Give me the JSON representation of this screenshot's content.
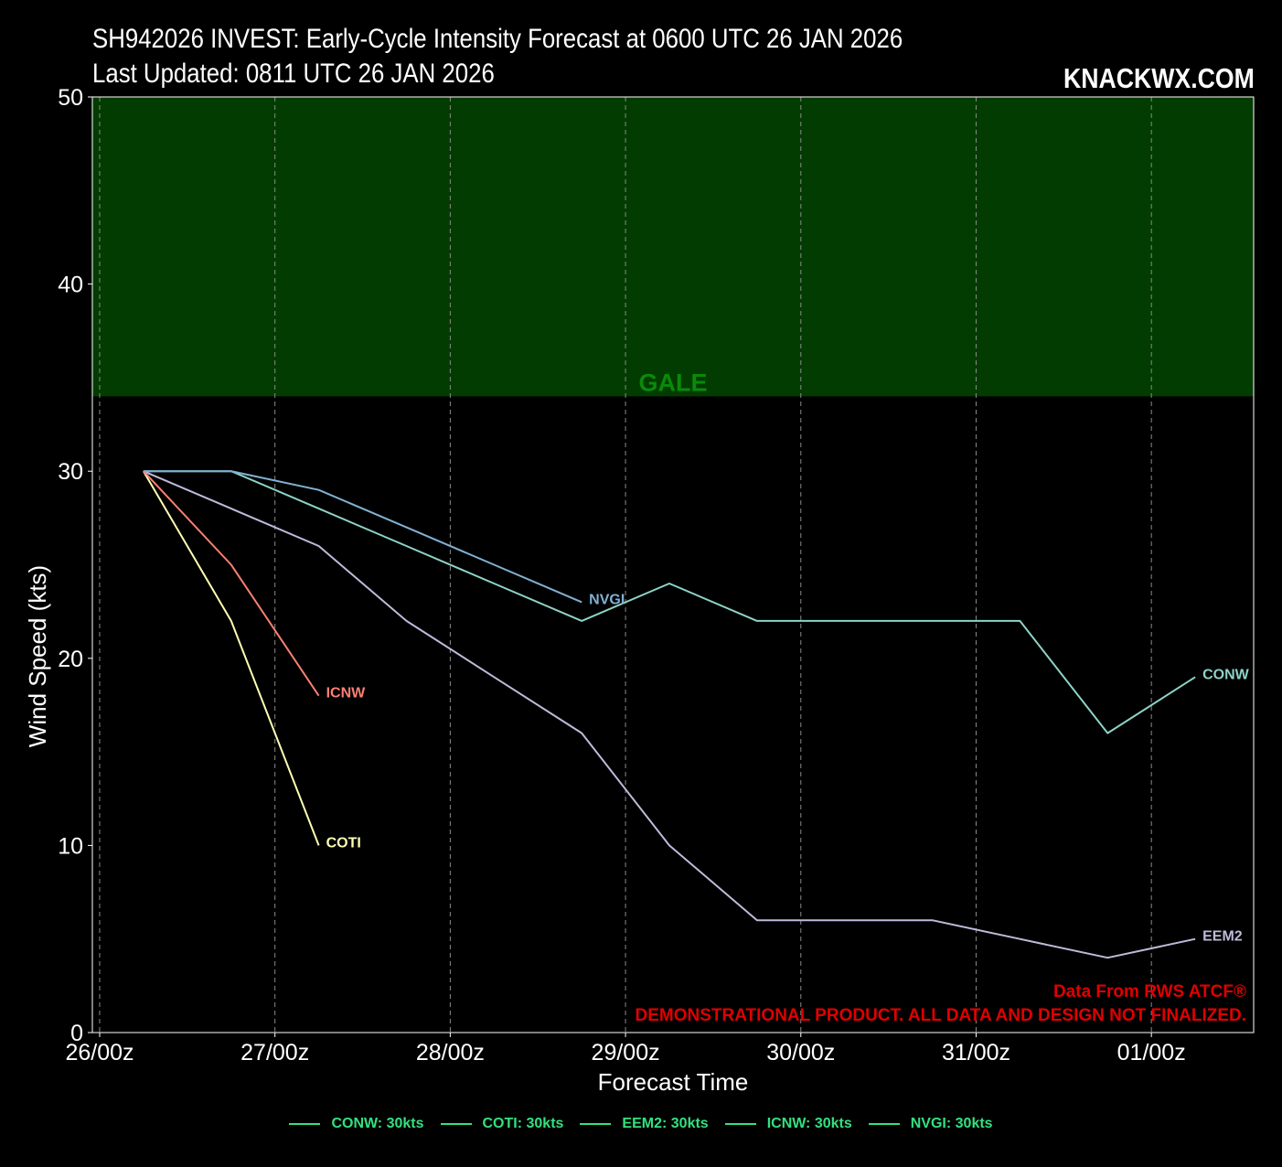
{
  "header": {
    "title_line1": "SH942026 INVEST: Early-Cycle Intensity Forecast at 0600 UTC 26 JAN 2026",
    "title_line2": "Last Updated: 0811 UTC 26 JAN 2026",
    "brand": "KNACKWX.COM"
  },
  "notes": {
    "source": "Data From RWS ATCF®",
    "disclaimer": "DEMONSTRATIONAL PRODUCT. ALL DATA AND DESIGN NOT FINALIZED."
  },
  "legend": [
    {
      "label": "CONW: 30kts"
    },
    {
      "label": "COTI: 30kts"
    },
    {
      "label": "EEM2: 30kts"
    },
    {
      "label": "ICNW: 30kts"
    },
    {
      "label": "NVGI: 30kts"
    }
  ],
  "colors": {
    "background": "#000000",
    "gale_band": "#023c00",
    "gale_text": "#0a8a0a",
    "legend_text": "#33e07f",
    "notes_text": "#e00000"
  },
  "chart_data": {
    "type": "line",
    "xlabel": "Forecast Time",
    "ylabel": "Wind Speed (kts)",
    "x_unit": "hours after 26/00z",
    "xlim": [
      -1,
      158
    ],
    "ylim": [
      0,
      50
    ],
    "x_ticks": [
      {
        "x": 0,
        "label": "26/00z"
      },
      {
        "x": 24,
        "label": "27/00z"
      },
      {
        "x": 48,
        "label": "28/00z"
      },
      {
        "x": 72,
        "label": "29/00z"
      },
      {
        "x": 96,
        "label": "30/00z"
      },
      {
        "x": 120,
        "label": "31/00z"
      },
      {
        "x": 144,
        "label": "01/00z"
      }
    ],
    "y_ticks": [
      0,
      10,
      20,
      30,
      40,
      50
    ],
    "grid": "vertical dashed",
    "band": {
      "label": "GALE",
      "from": 34,
      "to": 50
    },
    "series": [
      {
        "name": "CONW",
        "color": "#8dd3c7",
        "x": [
          6,
          18,
          30,
          42,
          54,
          66,
          78,
          90,
          102,
          114,
          126,
          138,
          150
        ],
        "y": [
          30,
          30,
          28,
          26,
          24,
          22,
          24,
          22,
          22,
          22,
          22,
          16,
          19
        ]
      },
      {
        "name": "COTI",
        "color": "#ffffb3",
        "x": [
          6,
          18,
          30
        ],
        "y": [
          30,
          22,
          10
        ]
      },
      {
        "name": "EEM2",
        "color": "#bebada",
        "x": [
          6,
          18,
          30,
          42,
          54,
          66,
          78,
          90,
          102,
          114,
          126,
          138,
          150
        ],
        "y": [
          30,
          28,
          26,
          22,
          19,
          16,
          10,
          6,
          6,
          6,
          5,
          4,
          5
        ]
      },
      {
        "name": "ICNW",
        "color": "#fb8072",
        "x": [
          6,
          18,
          30
        ],
        "y": [
          30,
          25,
          18
        ]
      },
      {
        "name": "NVGI",
        "color": "#80b1d3",
        "x": [
          6,
          18,
          30,
          42,
          54,
          66
        ],
        "y": [
          30,
          30,
          29,
          27,
          25,
          23
        ]
      }
    ]
  }
}
